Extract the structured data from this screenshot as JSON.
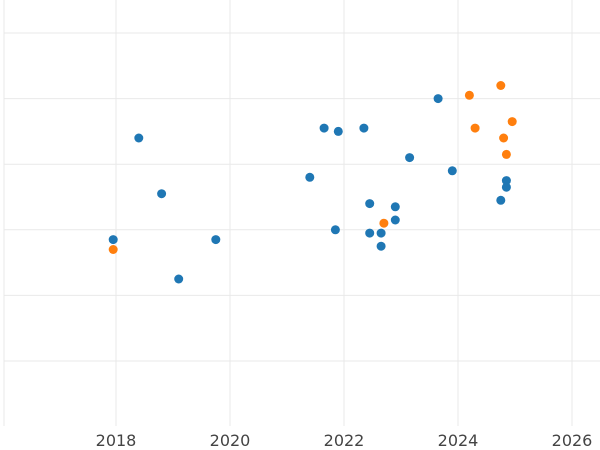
{
  "chart_data": {
    "type": "scatter",
    "title": "",
    "xlabel": "",
    "ylabel": "",
    "xlim": [
      2016.0,
      2026.5
    ],
    "ylim": [
      0,
      6.5
    ],
    "x_ticks": [
      2018,
      2020,
      2022,
      2024,
      2026
    ],
    "grid": true,
    "legend": "none",
    "colors": {
      "blue": "#1f77b4",
      "orange": "#ff7f0e",
      "grid": "#e9e9e9",
      "axis": "#bfbfbf"
    },
    "series": [
      {
        "color_key": "blue",
        "points": [
          {
            "x": 2017.95,
            "y": 2.85
          },
          {
            "x": 2018.4,
            "y": 4.4
          },
          {
            "x": 2018.8,
            "y": 3.55
          },
          {
            "x": 2019.1,
            "y": 2.25
          },
          {
            "x": 2019.75,
            "y": 2.85
          },
          {
            "x": 2021.4,
            "y": 3.8
          },
          {
            "x": 2021.65,
            "y": 4.55
          },
          {
            "x": 2021.85,
            "y": 3.0
          },
          {
            "x": 2021.9,
            "y": 4.5
          },
          {
            "x": 2022.35,
            "y": 4.55
          },
          {
            "x": 2022.45,
            "y": 3.4
          },
          {
            "x": 2022.45,
            "y": 2.95
          },
          {
            "x": 2022.65,
            "y": 2.75
          },
          {
            "x": 2022.65,
            "y": 2.95
          },
          {
            "x": 2022.9,
            "y": 3.35
          },
          {
            "x": 2022.9,
            "y": 3.15
          },
          {
            "x": 2023.15,
            "y": 4.1
          },
          {
            "x": 2023.65,
            "y": 5.0
          },
          {
            "x": 2023.9,
            "y": 3.9
          },
          {
            "x": 2024.75,
            "y": 3.45
          },
          {
            "x": 2024.85,
            "y": 3.75
          },
          {
            "x": 2024.85,
            "y": 3.65
          }
        ]
      },
      {
        "color_key": "orange",
        "points": [
          {
            "x": 2017.95,
            "y": 2.7
          },
          {
            "x": 2022.7,
            "y": 3.1
          },
          {
            "x": 2024.2,
            "y": 5.05
          },
          {
            "x": 2024.3,
            "y": 4.55
          },
          {
            "x": 2024.75,
            "y": 5.2
          },
          {
            "x": 2024.8,
            "y": 4.4
          },
          {
            "x": 2024.85,
            "y": 4.15
          },
          {
            "x": 2024.95,
            "y": 4.65
          }
        ]
      }
    ]
  }
}
